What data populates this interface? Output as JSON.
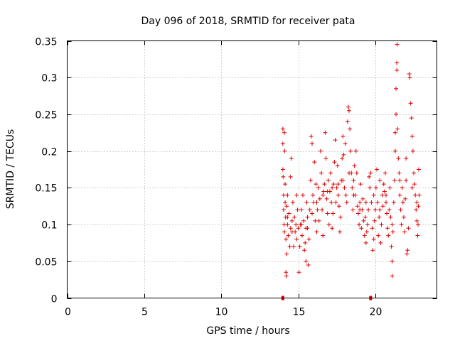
{
  "chart_data": {
    "type": "scatter",
    "title": "Day 096 of 2018, SRMTID for receiver pata",
    "xlabel": "GPS time / hours",
    "ylabel": "SRMTID / TECUs",
    "xlim": [
      0,
      24
    ],
    "ylim": [
      0,
      0.35
    ],
    "xticks": [
      "0",
      "5",
      "10",
      "15",
      "20"
    ],
    "xtick_values": [
      0,
      5,
      10,
      15,
      20
    ],
    "yticks": [
      "0",
      "0.05",
      "0.1",
      "0.15",
      "0.2",
      "0.25",
      "0.3",
      "0.35"
    ],
    "ytick_values": [
      0,
      0.05,
      0.1,
      0.15,
      0.2,
      0.25,
      0.3,
      0.35
    ],
    "grid": true,
    "marker": "+",
    "color": "#e00000",
    "baseline_markers": [
      14.0,
      19.7
    ],
    "series": [
      {
        "name": "SRMTID",
        "points": [
          [
            14.0,
            0.23
          ],
          [
            14.0,
            0.21
          ],
          [
            14.0,
            0.175
          ],
          [
            14.02,
            0.165
          ],
          [
            14.05,
            0.14
          ],
          [
            14.05,
            0.12
          ],
          [
            14.08,
            0.1
          ],
          [
            14.1,
            0.09
          ],
          [
            14.1,
            0.225
          ],
          [
            14.12,
            0.2
          ],
          [
            14.15,
            0.155
          ],
          [
            14.15,
            0.13
          ],
          [
            14.18,
            0.11
          ],
          [
            14.2,
            0.08
          ],
          [
            14.2,
            0.035
          ],
          [
            14.22,
            0.03
          ],
          [
            14.25,
            0.06
          ],
          [
            14.25,
            0.125
          ],
          [
            14.3,
            0.1
          ],
          [
            14.3,
            0.14
          ],
          [
            14.35,
            0.085
          ],
          [
            14.4,
            0.115
          ],
          [
            14.45,
            0.07
          ],
          [
            14.5,
            0.095
          ],
          [
            14.5,
            0.165
          ],
          [
            14.55,
            0.19
          ],
          [
            14.6,
            0.105
          ],
          [
            14.65,
            0.13
          ],
          [
            14.7,
            0.07
          ],
          [
            14.75,
            0.11
          ],
          [
            14.8,
            0.09
          ],
          [
            14.85,
            0.1
          ],
          [
            14.9,
            0.14
          ],
          [
            14.95,
            0.12
          ],
          [
            15.0,
            0.095
          ],
          [
            15.05,
            0.035
          ],
          [
            15.1,
            0.07
          ],
          [
            15.15,
            0.1
          ],
          [
            15.2,
            0.12
          ],
          [
            15.25,
            0.085
          ],
          [
            15.3,
            0.14
          ],
          [
            15.35,
            0.105
          ],
          [
            15.4,
            0.065
          ],
          [
            15.45,
            0.075
          ],
          [
            15.5,
            0.05
          ],
          [
            15.5,
            0.095
          ],
          [
            15.55,
            0.13
          ],
          [
            15.6,
            0.11
          ],
          [
            15.65,
            0.045
          ],
          [
            15.7,
            0.08
          ],
          [
            15.75,
            0.12
          ],
          [
            15.8,
            0.16
          ],
          [
            15.85,
            0.22
          ],
          [
            15.9,
            0.21
          ],
          [
            15.95,
            0.14
          ],
          [
            16.0,
            0.13
          ],
          [
            16.05,
            0.185
          ],
          [
            16.1,
            0.105
          ],
          [
            16.15,
            0.155
          ],
          [
            16.2,
            0.09
          ],
          [
            16.25,
            0.12
          ],
          [
            16.3,
            0.15
          ],
          [
            16.35,
            0.105
          ],
          [
            16.4,
            0.135
          ],
          [
            16.45,
            0.2
          ],
          [
            16.5,
            0.17
          ],
          [
            16.55,
            0.12
          ],
          [
            16.6,
            0.085
          ],
          [
            16.65,
            0.145
          ],
          [
            16.7,
            0.155
          ],
          [
            16.75,
            0.225
          ],
          [
            16.8,
            0.19
          ],
          [
            16.85,
            0.135
          ],
          [
            16.9,
            0.115
          ],
          [
            16.95,
            0.16
          ],
          [
            17.0,
            0.1
          ],
          [
            17.05,
            0.145
          ],
          [
            17.1,
            0.17
          ],
          [
            17.15,
            0.13
          ],
          [
            17.2,
            0.095
          ],
          [
            17.25,
            0.115
          ],
          [
            17.3,
            0.155
          ],
          [
            17.35,
            0.185
          ],
          [
            17.4,
            0.215
          ],
          [
            17.45,
            0.13
          ],
          [
            17.5,
            0.15
          ],
          [
            17.55,
            0.18
          ],
          [
            17.6,
            0.14
          ],
          [
            17.65,
            0.125
          ],
          [
            17.7,
            0.09
          ],
          [
            17.75,
            0.11
          ],
          [
            17.8,
            0.16
          ],
          [
            17.85,
            0.19
          ],
          [
            17.9,
            0.22
          ],
          [
            17.95,
            0.195
          ],
          [
            18.0,
            0.15
          ],
          [
            18.05,
            0.21
          ],
          [
            18.1,
            0.14
          ],
          [
            18.15,
            0.13
          ],
          [
            18.2,
            0.24
          ],
          [
            18.25,
            0.26
          ],
          [
            18.3,
            0.255
          ],
          [
            18.35,
            0.23
          ],
          [
            18.4,
            0.2
          ],
          [
            18.45,
            0.17
          ],
          [
            18.5,
            0.15
          ],
          [
            18.55,
            0.12
          ],
          [
            18.6,
            0.16
          ],
          [
            18.65,
            0.18
          ],
          [
            18.7,
            0.14
          ],
          [
            18.75,
            0.2
          ],
          [
            18.8,
            0.17
          ],
          [
            18.85,
            0.125
          ],
          [
            18.9,
            0.115
          ],
          [
            18.95,
            0.1
          ],
          [
            19.0,
            0.13
          ],
          [
            19.05,
            0.155
          ],
          [
            19.1,
            0.095
          ],
          [
            19.15,
            0.12
          ],
          [
            19.2,
            0.135
          ],
          [
            19.25,
            0.105
          ],
          [
            19.3,
            0.085
          ],
          [
            19.35,
            0.11
          ],
          [
            19.4,
            0.075
          ],
          [
            19.45,
            0.09
          ],
          [
            19.5,
            0.1
          ],
          [
            19.55,
            0.12
          ],
          [
            19.6,
            0.165
          ],
          [
            19.65,
            0.15
          ],
          [
            19.7,
            0.17
          ],
          [
            19.75,
            0.13
          ],
          [
            19.8,
            0.095
          ],
          [
            19.85,
            0.065
          ],
          [
            19.9,
            0.08
          ],
          [
            19.95,
            0.105
          ],
          [
            20.0,
            0.12
          ],
          [
            20.05,
            0.15
          ],
          [
            20.1,
            0.175
          ],
          [
            20.15,
            0.13
          ],
          [
            20.2,
            0.085
          ],
          [
            20.25,
            0.11
          ],
          [
            20.3,
            0.16
          ],
          [
            20.35,
            0.075
          ],
          [
            20.4,
            0.1
          ],
          [
            20.45,
            0.14
          ],
          [
            20.5,
            0.125
          ],
          [
            20.55,
            0.155
          ],
          [
            20.6,
            0.145
          ],
          [
            20.65,
            0.17
          ],
          [
            20.7,
            0.13
          ],
          [
            20.75,
            0.115
          ],
          [
            20.8,
            0.095
          ],
          [
            20.85,
            0.085
          ],
          [
            20.9,
            0.12
          ],
          [
            20.95,
            0.15
          ],
          [
            21.0,
            0.11
          ],
          [
            21.05,
            0.07
          ],
          [
            21.1,
            0.05
          ],
          [
            21.1,
            0.03
          ],
          [
            21.15,
            0.09
          ],
          [
            21.2,
            0.13
          ],
          [
            21.25,
            0.16
          ],
          [
            21.3,
            0.2
          ],
          [
            21.3,
            0.225
          ],
          [
            21.35,
            0.25
          ],
          [
            21.35,
            0.285
          ],
          [
            21.4,
            0.31
          ],
          [
            21.4,
            0.32
          ],
          [
            21.42,
            0.345
          ],
          [
            21.45,
            0.23
          ],
          [
            21.5,
            0.19
          ],
          [
            21.55,
            0.17
          ],
          [
            21.6,
            0.14
          ],
          [
            21.65,
            0.12
          ],
          [
            21.7,
            0.1
          ],
          [
            21.75,
            0.15
          ],
          [
            21.8,
            0.13
          ],
          [
            21.85,
            0.11
          ],
          [
            21.9,
            0.09
          ],
          [
            21.95,
            0.135
          ],
          [
            22.0,
            0.16
          ],
          [
            22.05,
            0.06
          ],
          [
            22.1,
            0.065
          ],
          [
            22.15,
            0.095
          ],
          [
            22.2,
            0.305
          ],
          [
            22.25,
            0.3
          ],
          [
            22.3,
            0.265
          ],
          [
            22.35,
            0.245
          ],
          [
            22.4,
            0.22
          ],
          [
            22.45,
            0.2
          ],
          [
            22.5,
            0.17
          ],
          [
            22.55,
            0.155
          ],
          [
            22.6,
            0.14
          ],
          [
            22.65,
            0.12
          ],
          [
            22.7,
            0.105
          ],
          [
            22.75,
            0.085
          ],
          [
            22.78,
            0.1
          ],
          [
            22.8,
            0.125
          ],
          [
            22.82,
            0.175
          ],
          [
            22.85,
            0.14
          ],
          [
            14.3,
            0.11
          ],
          [
            14.6,
            0.09
          ],
          [
            14.9,
            0.08
          ],
          [
            15.2,
            0.1
          ],
          [
            15.6,
            0.095
          ],
          [
            15.9,
            0.115
          ],
          [
            16.2,
            0.13
          ],
          [
            16.6,
            0.14
          ],
          [
            16.9,
            0.145
          ],
          [
            17.2,
            0.15
          ],
          [
            17.6,
            0.155
          ],
          [
            17.9,
            0.16
          ],
          [
            18.3,
            0.17
          ],
          [
            18.6,
            0.14
          ],
          [
            19.0,
            0.12
          ],
          [
            19.4,
            0.13
          ],
          [
            19.9,
            0.14
          ],
          [
            20.3,
            0.12
          ],
          [
            20.7,
            0.14
          ],
          [
            21.1,
            0.1
          ],
          [
            21.6,
            0.16
          ],
          [
            22.0,
            0.19
          ],
          [
            22.4,
            0.15
          ],
          [
            22.7,
            0.13
          ]
        ]
      }
    ]
  }
}
